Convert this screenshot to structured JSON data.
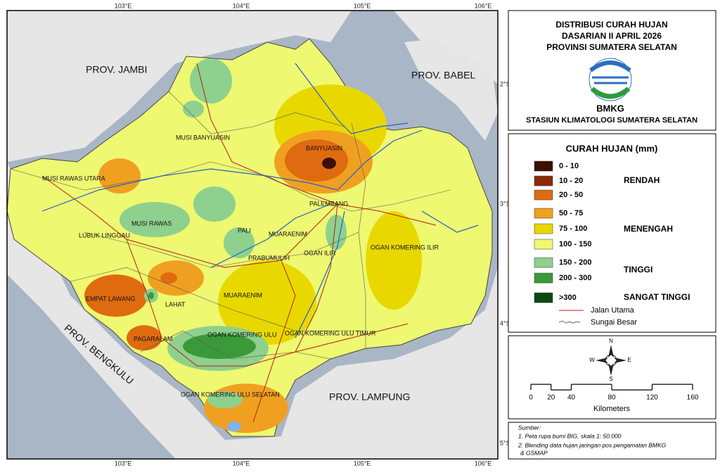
{
  "map": {
    "lon_labels": [
      "103°E",
      "104°E",
      "105°E",
      "106°E"
    ],
    "lat_labels": [
      "2°S",
      "3°S",
      "4°S",
      "5°S"
    ],
    "provinces": [
      "PROV. JAMBI",
      "PROV. BABEL",
      "PROV. BENGKULU",
      "PROV. LAMPUNG"
    ],
    "regions": [
      "MUSI BANYUASIN",
      "BANYUASIN",
      "MUSI RAWAS UTARA",
      "PALEMBANG",
      "MUSI RAWAS",
      "LUBUK LINGGAU",
      "PALI",
      "MUARAENIM",
      "OGAN ILIR",
      "PRABUMULIH",
      "OGAN KOMERING ILIR",
      "EMPAT LAWANG",
      "LAHAT",
      "MUARAENIM",
      "PAGARALAM",
      "OGAN KOMERING ULU",
      "OGAN KOMERING ULU TIMUR",
      "OGAN KOMERING ULU SELATAN"
    ]
  },
  "panel": {
    "title": [
      "DISTRIBUSI CURAH HUJAN",
      "DASARIAN II APRIL 2026",
      "PROVINSI SUMATERA SELATAN"
    ],
    "logo_text": "BMKG",
    "station": "STASIUN KLIMATOLOGI SUMATERA SELATAN",
    "legend": {
      "title": "CURAH HUJAN (mm)",
      "classes": [
        {
          "label": "0 - 10",
          "color": "#3b0f05"
        },
        {
          "label": "10 - 20",
          "color": "#8b2a0a"
        },
        {
          "label": "20 - 50",
          "color": "#e06a10"
        },
        {
          "label": "50 - 75",
          "color": "#f0a020"
        },
        {
          "label": "75 - 100",
          "color": "#e8d800"
        },
        {
          "label": "100 - 150",
          "color": "#eef870"
        },
        {
          "label": "150 - 200",
          "color": "#8ed08e"
        },
        {
          "label": "200 - 300",
          "color": "#3a9a3a"
        },
        {
          "label": ">300",
          "color": "#0a4a12"
        }
      ],
      "categories": [
        "RENDAH",
        "MENENGAH",
        "TINGGI",
        "SANGAT TINGGI"
      ],
      "lines": [
        "Jalan Utama",
        "Sungai Besar"
      ]
    },
    "compass": [
      "N",
      "S",
      "E",
      "W"
    ],
    "scale": {
      "ticks": [
        0,
        20,
        40,
        80,
        120,
        160
      ],
      "unit": "Kilometers"
    },
    "source": [
      "Sumber:",
      "1. Peta rupa bumi BIG, skala 1: 50.000",
      "2. Blending data hujan jaringan pos pengamatan BMKG",
      "& GSMAP"
    ]
  }
}
